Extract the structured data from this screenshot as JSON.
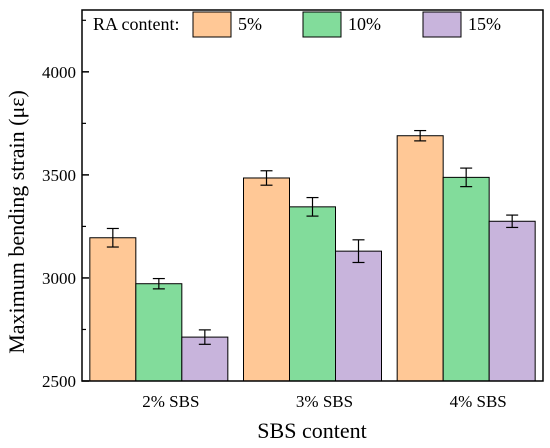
{
  "chart_data": {
    "type": "bar",
    "title": "",
    "xlabel": "SBS content",
    "ylabel": "Maximum bending strain (με)",
    "categories": [
      "2% SBS",
      "3% SBS",
      "4% SBS"
    ],
    "ylim": [
      2500,
      4300
    ],
    "yticks": [
      2500,
      3000,
      3500,
      4000
    ],
    "grid": false,
    "legend": {
      "title": "RA content:",
      "placement": "top"
    },
    "series": [
      {
        "name": "5%",
        "color": "#ffc896",
        "values": [
          3195,
          3485,
          3690
        ],
        "errors": [
          45,
          35,
          25
        ]
      },
      {
        "name": "10%",
        "color": "#82dc9b",
        "values": [
          2972,
          3345,
          3488
        ],
        "errors": [
          25,
          45,
          45
        ]
      },
      {
        "name": "15%",
        "color": "#c8b4dc",
        "values": [
          2713,
          3130,
          3275
        ],
        "errors": [
          35,
          55,
          30
        ]
      }
    ]
  }
}
